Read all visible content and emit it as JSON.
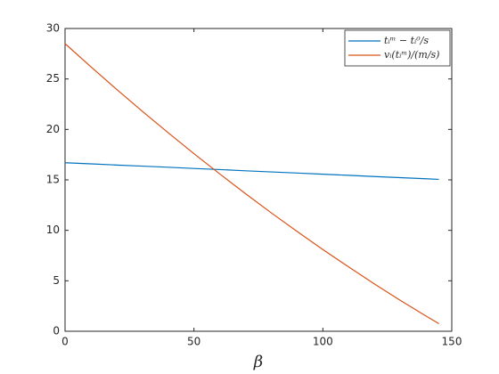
{
  "chart_data": {
    "type": "line",
    "x_label": "β",
    "x": [
      0,
      10,
      20,
      30,
      40,
      50,
      60,
      70,
      80,
      90,
      100,
      110,
      120,
      130,
      140,
      145
    ],
    "series": [
      {
        "name": "tᵢᵐ − tᵢ⁰/s",
        "color": "#0072bd",
        "values": [
          16.7,
          16.59,
          16.47,
          16.36,
          16.25,
          16.13,
          16.02,
          15.9,
          15.79,
          15.68,
          15.56,
          15.45,
          15.33,
          15.22,
          15.11,
          15.05
        ]
      },
      {
        "name": "vᵢ(tᵢᵐ)/(m/s)",
        "color": "#d95319",
        "values": [
          28.5,
          26.21,
          23.97,
          21.79,
          19.67,
          17.6,
          15.59,
          13.63,
          11.73,
          9.89,
          8.1,
          6.37,
          4.69,
          3.07,
          1.51,
          0.75
        ]
      }
    ],
    "xlim": [
      0,
      150
    ],
    "xticks": [
      0,
      50,
      100,
      150
    ],
    "ylim": [
      0,
      30
    ],
    "yticks": [
      0,
      5,
      10,
      15,
      20,
      25,
      30
    ],
    "legend": "upper-right"
  }
}
